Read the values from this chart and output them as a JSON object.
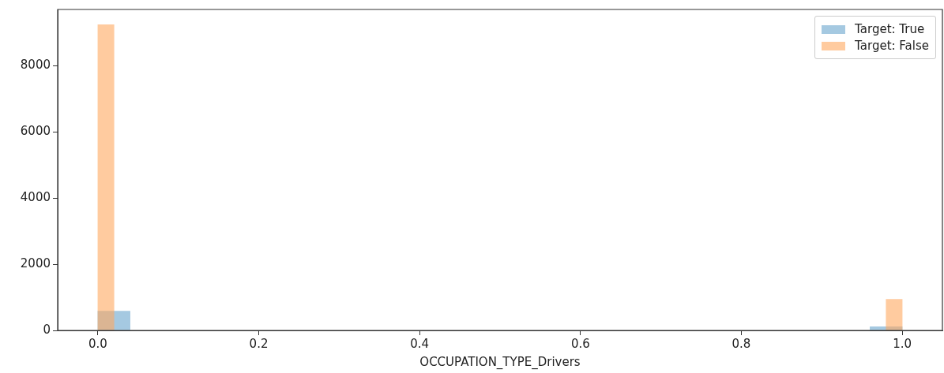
{
  "chart_data": {
    "type": "bar",
    "xlabel": "OCCUPATION_TYPE_Drivers",
    "xlim": [
      -0.05,
      1.05
    ],
    "ylim": [
      0,
      9700
    ],
    "xticks": [
      {
        "value": 0,
        "label": "0.0"
      },
      {
        "value": 0.2,
        "label": "0.2"
      },
      {
        "value": 0.4,
        "label": "0.4"
      },
      {
        "value": 0.6,
        "label": "0.6"
      },
      {
        "value": 0.8,
        "label": "0.8"
      },
      {
        "value": 1,
        "label": "1.0"
      }
    ],
    "yticks": [
      0,
      2000,
      4000,
      6000,
      8000
    ],
    "grid": false,
    "legend": "top right",
    "series": [
      {
        "name": "Target: True",
        "color": "#a5c9e1",
        "x": [
          0.02,
          0.06,
          0.1,
          0.14,
          0.18,
          0.22,
          0.26,
          0.3,
          0.34,
          0.38,
          0.42,
          0.46,
          0.5,
          0.54,
          0.58,
          0.62,
          0.66,
          0.7,
          0.74,
          0.78,
          0.82,
          0.86,
          0.9,
          0.94,
          0.98
        ],
        "values": [
          580,
          0,
          0,
          0,
          0,
          0,
          0,
          0,
          0,
          0,
          0,
          0,
          0,
          0,
          0,
          0,
          0,
          0,
          0,
          0,
          0,
          0,
          0,
          0,
          110
        ]
      },
      {
        "name": "Target: False",
        "color": "#ffcb9f",
        "x": [
          0.01,
          0.03,
          0.05,
          0.07,
          0.09,
          0.11,
          0.13,
          0.15,
          0.17,
          0.19,
          0.21,
          0.23,
          0.25,
          0.27,
          0.29,
          0.31,
          0.33,
          0.35,
          0.37,
          0.39,
          0.41,
          0.43,
          0.45,
          0.47,
          0.49,
          0.51,
          0.53,
          0.55,
          0.57,
          0.59,
          0.61,
          0.63,
          0.65,
          0.67,
          0.69,
          0.71,
          0.73,
          0.75,
          0.77,
          0.79,
          0.81,
          0.83,
          0.85,
          0.87,
          0.89,
          0.91,
          0.93,
          0.95,
          0.97,
          0.99
        ],
        "values": [
          9240,
          0,
          0,
          0,
          0,
          0,
          0,
          0,
          0,
          0,
          0,
          0,
          0,
          0,
          0,
          0,
          0,
          0,
          0,
          0,
          0,
          0,
          0,
          0,
          0,
          0,
          0,
          0,
          0,
          0,
          0,
          0,
          0,
          0,
          0,
          0,
          0,
          0,
          0,
          0,
          0,
          0,
          0,
          0,
          0,
          0,
          0,
          0,
          0,
          940
        ]
      }
    ]
  }
}
